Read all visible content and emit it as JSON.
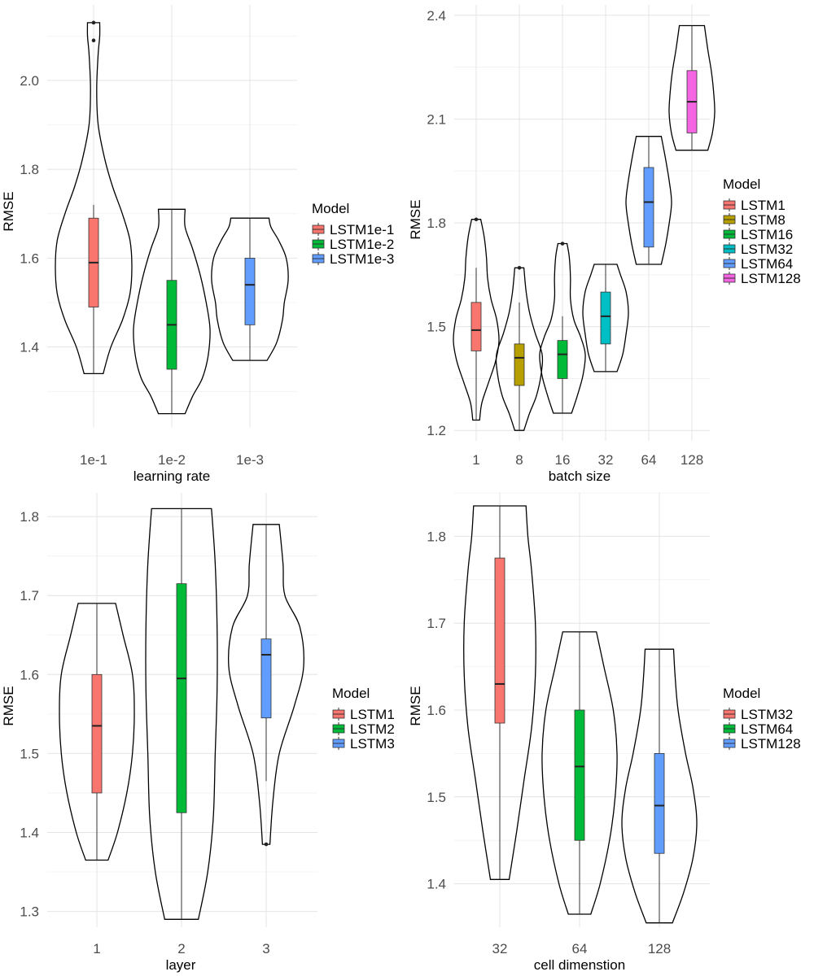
{
  "chart_data": [
    {
      "type": "violin",
      "xlabel": "learning rate",
      "ylabel": "RMSE",
      "ylim": [
        1.22,
        2.17
      ],
      "yticks": [
        "1.4",
        "1.6",
        "1.8",
        "2.0"
      ],
      "ytick_values": [
        1.4,
        1.6,
        1.8,
        2.0
      ],
      "categories": [
        "1e-1",
        "1e-2",
        "1e-3"
      ],
      "legend_title": "Model",
      "legend_position": "right",
      "grid": true,
      "series": [
        {
          "name": "LSTM1e-1",
          "color": "#F8766D",
          "min": 1.34,
          "q1": 1.49,
          "median": 1.59,
          "q3": 1.69,
          "whisker_low": 1.34,
          "whisker_high": 1.72,
          "max": 2.13,
          "outliers": [
            2.09,
            2.13
          ],
          "density": [
            [
              1.34,
              0.25
            ],
            [
              1.4,
              0.45
            ],
            [
              1.46,
              0.75
            ],
            [
              1.52,
              0.95
            ],
            [
              1.58,
              1.0
            ],
            [
              1.64,
              0.95
            ],
            [
              1.7,
              0.75
            ],
            [
              1.76,
              0.5
            ],
            [
              1.82,
              0.3
            ],
            [
              1.9,
              0.12
            ],
            [
              1.98,
              0.08
            ],
            [
              2.06,
              0.12
            ],
            [
              2.1,
              0.16
            ],
            [
              2.13,
              0.16
            ]
          ]
        },
        {
          "name": "LSTM1e-2",
          "color": "#00BA38",
          "min": 1.25,
          "q1": 1.35,
          "median": 1.45,
          "q3": 1.55,
          "whisker_low": 1.25,
          "whisker_high": 1.71,
          "max": 1.71,
          "outliers": [],
          "density": [
            [
              1.25,
              0.35
            ],
            [
              1.29,
              0.55
            ],
            [
              1.33,
              0.8
            ],
            [
              1.38,
              0.95
            ],
            [
              1.44,
              1.0
            ],
            [
              1.5,
              0.9
            ],
            [
              1.56,
              0.75
            ],
            [
              1.62,
              0.55
            ],
            [
              1.67,
              0.35
            ],
            [
              1.71,
              0.35
            ]
          ]
        },
        {
          "name": "LSTM1e-3",
          "color": "#619CFF",
          "min": 1.37,
          "q1": 1.45,
          "median": 1.54,
          "q3": 1.6,
          "whisker_low": 1.37,
          "whisker_high": 1.69,
          "max": 1.69,
          "outliers": [],
          "density": [
            [
              1.37,
              0.45
            ],
            [
              1.41,
              0.7
            ],
            [
              1.46,
              0.85
            ],
            [
              1.5,
              0.9
            ],
            [
              1.55,
              1.0
            ],
            [
              1.6,
              0.95
            ],
            [
              1.64,
              0.75
            ],
            [
              1.67,
              0.55
            ],
            [
              1.69,
              0.5
            ]
          ]
        }
      ]
    },
    {
      "type": "violin",
      "xlabel": "batch size",
      "ylabel": "RMSE",
      "ylim": [
        1.17,
        2.43
      ],
      "yticks": [
        "1.2",
        "1.5",
        "1.8",
        "2.1",
        "2.4"
      ],
      "ytick_values": [
        1.2,
        1.5,
        1.8,
        2.1,
        2.4
      ],
      "categories": [
        "1",
        "8",
        "16",
        "32",
        "64",
        "128"
      ],
      "legend_title": "Model",
      "legend_position": "right",
      "grid": true,
      "series": [
        {
          "name": "LSTM1",
          "color": "#F8766D",
          "min": 1.23,
          "q1": 1.43,
          "median": 1.49,
          "q3": 1.57,
          "whisker_low": 1.23,
          "whisker_high": 1.67,
          "max": 1.81,
          "outliers": [
            1.81
          ],
          "density": [
            [
              1.23,
              0.15
            ],
            [
              1.28,
              0.25
            ],
            [
              1.34,
              0.55
            ],
            [
              1.4,
              0.85
            ],
            [
              1.46,
              1.0
            ],
            [
              1.52,
              0.9
            ],
            [
              1.58,
              0.65
            ],
            [
              1.64,
              0.5
            ],
            [
              1.7,
              0.45
            ],
            [
              1.76,
              0.35
            ],
            [
              1.81,
              0.2
            ]
          ]
        },
        {
          "name": "LSTM8",
          "color": "#B79F00",
          "min": 1.2,
          "q1": 1.33,
          "median": 1.41,
          "q3": 1.45,
          "whisker_low": 1.2,
          "whisker_high": 1.57,
          "max": 1.67,
          "outliers": [
            1.67
          ],
          "density": [
            [
              1.2,
              0.2
            ],
            [
              1.25,
              0.45
            ],
            [
              1.3,
              0.75
            ],
            [
              1.36,
              0.95
            ],
            [
              1.42,
              1.0
            ],
            [
              1.48,
              0.7
            ],
            [
              1.54,
              0.45
            ],
            [
              1.6,
              0.3
            ],
            [
              1.67,
              0.2
            ]
          ]
        },
        {
          "name": "LSTM16",
          "color": "#00BA38",
          "min": 1.25,
          "q1": 1.35,
          "median": 1.42,
          "q3": 1.46,
          "whisker_low": 1.25,
          "whisker_high": 1.53,
          "max": 1.74,
          "outliers": [
            1.74
          ],
          "density": [
            [
              1.25,
              0.4
            ],
            [
              1.3,
              0.65
            ],
            [
              1.36,
              0.9
            ],
            [
              1.42,
              1.0
            ],
            [
              1.47,
              0.8
            ],
            [
              1.52,
              0.5
            ],
            [
              1.58,
              0.35
            ],
            [
              1.64,
              0.35
            ],
            [
              1.7,
              0.3
            ],
            [
              1.74,
              0.2
            ]
          ]
        },
        {
          "name": "LSTM32",
          "color": "#00BFC4",
          "min": 1.37,
          "q1": 1.45,
          "median": 1.53,
          "q3": 1.6,
          "whisker_low": 1.37,
          "whisker_high": 1.68,
          "max": 1.68,
          "outliers": [],
          "density": [
            [
              1.37,
              0.5
            ],
            [
              1.42,
              0.75
            ],
            [
              1.48,
              0.9
            ],
            [
              1.54,
              1.0
            ],
            [
              1.6,
              0.9
            ],
            [
              1.65,
              0.65
            ],
            [
              1.68,
              0.5
            ]
          ]
        },
        {
          "name": "LSTM64",
          "color": "#619CFF",
          "min": 1.68,
          "q1": 1.73,
          "median": 1.86,
          "q3": 1.96,
          "whisker_low": 1.68,
          "whisker_high": 2.05,
          "max": 2.05,
          "outliers": [],
          "density": [
            [
              1.68,
              0.55
            ],
            [
              1.74,
              0.75
            ],
            [
              1.8,
              0.9
            ],
            [
              1.86,
              1.0
            ],
            [
              1.92,
              0.9
            ],
            [
              1.98,
              0.75
            ],
            [
              2.05,
              0.55
            ]
          ]
        },
        {
          "name": "LSTM128",
          "color": "#F564E3",
          "min": 2.01,
          "q1": 2.06,
          "median": 2.15,
          "q3": 2.24,
          "whisker_low": 2.01,
          "whisker_high": 2.37,
          "max": 2.37,
          "outliers": [],
          "density": [
            [
              2.01,
              0.7
            ],
            [
              2.06,
              0.9
            ],
            [
              2.12,
              1.0
            ],
            [
              2.18,
              0.95
            ],
            [
              2.24,
              0.85
            ],
            [
              2.3,
              0.7
            ],
            [
              2.37,
              0.55
            ]
          ]
        }
      ]
    },
    {
      "type": "violin",
      "xlabel": "layer",
      "ylabel": "RMSE",
      "ylim": [
        1.28,
        1.83
      ],
      "yticks": [
        "1.3",
        "1.4",
        "1.5",
        "1.6",
        "1.7",
        "1.8"
      ],
      "ytick_values": [
        1.3,
        1.4,
        1.5,
        1.6,
        1.7,
        1.8
      ],
      "categories": [
        "1",
        "2",
        "3"
      ],
      "legend_title": "Model",
      "legend_position": "right",
      "grid": true,
      "series": [
        {
          "name": "LSTM1",
          "color": "#F8766D",
          "min": 1.365,
          "q1": 1.45,
          "median": 1.535,
          "q3": 1.6,
          "whisker_low": 1.365,
          "whisker_high": 1.69,
          "max": 1.69,
          "outliers": [],
          "density": [
            [
              1.365,
              0.3
            ],
            [
              1.4,
              0.55
            ],
            [
              1.45,
              0.8
            ],
            [
              1.5,
              0.95
            ],
            [
              1.55,
              1.0
            ],
            [
              1.6,
              0.95
            ],
            [
              1.65,
              0.7
            ],
            [
              1.69,
              0.5
            ]
          ]
        },
        {
          "name": "LSTM2",
          "color": "#00BA38",
          "min": 1.29,
          "q1": 1.425,
          "median": 1.595,
          "q3": 1.715,
          "whisker_low": 1.29,
          "whisker_high": 1.81,
          "max": 1.81,
          "outliers": [],
          "density": [
            [
              1.29,
              0.45
            ],
            [
              1.35,
              0.7
            ],
            [
              1.42,
              0.85
            ],
            [
              1.5,
              0.9
            ],
            [
              1.58,
              0.95
            ],
            [
              1.66,
              0.95
            ],
            [
              1.74,
              0.9
            ],
            [
              1.81,
              0.8
            ]
          ]
        },
        {
          "name": "LSTM3",
          "color": "#619CFF",
          "min": 1.385,
          "q1": 1.545,
          "median": 1.625,
          "q3": 1.645,
          "whisker_low": 1.465,
          "whisker_high": 1.79,
          "max": 1.79,
          "outliers": [
            1.385
          ],
          "density": [
            [
              1.385,
              0.1
            ],
            [
              1.44,
              0.18
            ],
            [
              1.5,
              0.35
            ],
            [
              1.56,
              0.75
            ],
            [
              1.61,
              1.0
            ],
            [
              1.66,
              0.9
            ],
            [
              1.7,
              0.5
            ],
            [
              1.74,
              0.45
            ],
            [
              1.79,
              0.35
            ]
          ]
        }
      ]
    },
    {
      "type": "violin",
      "xlabel": "cell dimenstion",
      "ylabel": "RMSE",
      "ylim": [
        1.35,
        1.85
      ],
      "yticks": [
        "1.4",
        "1.5",
        "1.6",
        "1.7",
        "1.8"
      ],
      "ytick_values": [
        1.4,
        1.5,
        1.6,
        1.7,
        1.8
      ],
      "categories": [
        "32",
        "64",
        "128"
      ],
      "legend_title": "Model",
      "legend_position": "right",
      "grid": true,
      "series": [
        {
          "name": "LSTM32",
          "color": "#F8766D",
          "min": 1.405,
          "q1": 1.585,
          "median": 1.63,
          "q3": 1.775,
          "whisker_low": 1.405,
          "whisker_high": 1.835,
          "max": 1.835,
          "outliers": [],
          "density": [
            [
              1.405,
              0.25
            ],
            [
              1.46,
              0.45
            ],
            [
              1.52,
              0.65
            ],
            [
              1.58,
              0.85
            ],
            [
              1.64,
              0.95
            ],
            [
              1.7,
              0.95
            ],
            [
              1.76,
              0.85
            ],
            [
              1.8,
              0.75
            ],
            [
              1.835,
              0.7
            ]
          ]
        },
        {
          "name": "LSTM64",
          "color": "#00BA38",
          "min": 1.365,
          "q1": 1.45,
          "median": 1.535,
          "q3": 1.6,
          "whisker_low": 1.365,
          "whisker_high": 1.69,
          "max": 1.69,
          "outliers": [],
          "density": [
            [
              1.365,
              0.3
            ],
            [
              1.4,
              0.55
            ],
            [
              1.45,
              0.8
            ],
            [
              1.5,
              0.95
            ],
            [
              1.55,
              1.0
            ],
            [
              1.6,
              0.9
            ],
            [
              1.65,
              0.65
            ],
            [
              1.69,
              0.45
            ]
          ]
        },
        {
          "name": "LSTM128",
          "color": "#619CFF",
          "min": 1.355,
          "q1": 1.435,
          "median": 1.49,
          "q3": 1.55,
          "whisker_low": 1.355,
          "whisker_high": 1.67,
          "max": 1.67,
          "outliers": [],
          "density": [
            [
              1.355,
              0.35
            ],
            [
              1.39,
              0.65
            ],
            [
              1.43,
              0.9
            ],
            [
              1.47,
              1.0
            ],
            [
              1.51,
              0.9
            ],
            [
              1.55,
              0.7
            ],
            [
              1.6,
              0.5
            ],
            [
              1.64,
              0.42
            ],
            [
              1.67,
              0.38
            ]
          ]
        }
      ]
    }
  ]
}
